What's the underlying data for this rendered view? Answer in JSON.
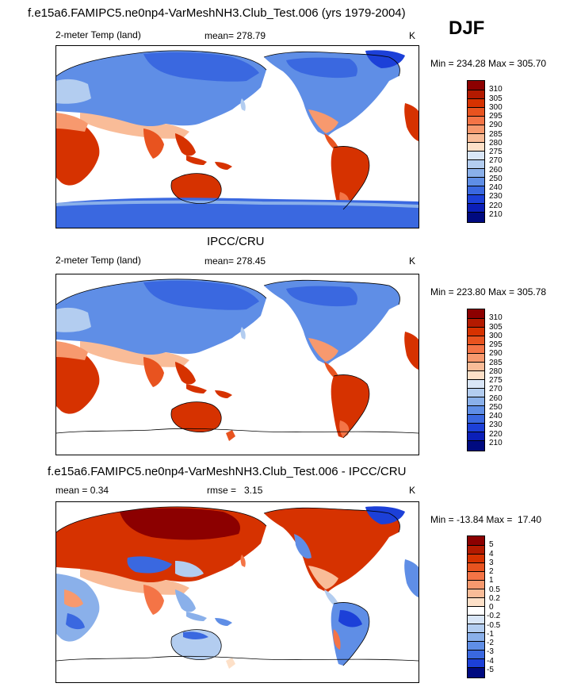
{
  "page": {
    "season": "DJF",
    "title": "f.e15a6.FAMIPC5.ne0np4-VarMeshNH3.Club_Test.006 (yrs 1979-2004)"
  },
  "panels": [
    {
      "id": "model",
      "variable": "2-meter Temp (land)",
      "stat": "mean= 278.79",
      "units": "K",
      "minmax": "Min = 234.28 Max = 305.70"
    },
    {
      "id": "obs",
      "heading": "IPCC/CRU",
      "variable": "2-meter Temp (land)",
      "stat": "mean= 278.45",
      "units": "K",
      "minmax": "Min = 223.80 Max = 305.78"
    },
    {
      "id": "diff",
      "heading": "f.e15a6.FAMIPC5.ne0np4-VarMeshNH3.Club_Test.006 - IPCC/CRU",
      "stat_mean": "mean =   0.34",
      "stat_rmse": "rmse =   3.15",
      "units": "K",
      "minmax": "Min = -13.84 Max =  17.40"
    }
  ],
  "chart_data": [
    {
      "type": "heatmap",
      "title": "f.e15a6.FAMIPC5.ne0np4-VarMeshNH3.Club_Test.006 (yrs 1979-2004)",
      "variable": "2-meter Temp (land)",
      "mean": 278.79,
      "min": 234.28,
      "max": 305.7,
      "units": "K",
      "levels": [
        "310",
        "305",
        "300",
        "295",
        "290",
        "285",
        "280",
        "275",
        "270",
        "260",
        "250",
        "240",
        "230",
        "220",
        "210"
      ],
      "colors": [
        "#8c0000",
        "#b31a00",
        "#d63200",
        "#e8531f",
        "#f47446",
        "#f7996e",
        "#f9bc98",
        "#fde0c8",
        "#d9e6f7",
        "#b3cdf0",
        "#8ab0ea",
        "#5f8ee6",
        "#3a68e0",
        "#1c40d8",
        "#0b1fb8",
        "#000a80"
      ]
    },
    {
      "type": "heatmap",
      "title": "IPCC/CRU",
      "variable": "2-meter Temp (land)",
      "mean": 278.45,
      "min": 223.8,
      "max": 305.78,
      "units": "K",
      "levels": [
        "310",
        "305",
        "300",
        "295",
        "290",
        "285",
        "280",
        "275",
        "270",
        "260",
        "250",
        "240",
        "230",
        "220",
        "210"
      ],
      "colors": [
        "#8c0000",
        "#b31a00",
        "#d63200",
        "#e8531f",
        "#f47446",
        "#f7996e",
        "#f9bc98",
        "#fde0c8",
        "#d9e6f7",
        "#b3cdf0",
        "#8ab0ea",
        "#5f8ee6",
        "#3a68e0",
        "#1c40d8",
        "#0b1fb8",
        "#000a80"
      ]
    },
    {
      "type": "heatmap",
      "title": "f.e15a6.FAMIPC5.ne0np4-VarMeshNH3.Club_Test.006 - IPCC/CRU",
      "mean": 0.34,
      "rmse": 3.15,
      "min": -13.84,
      "max": 17.4,
      "units": "K",
      "levels": [
        "5",
        "4",
        "3",
        "2",
        "1",
        "0.5",
        "0.2",
        "0",
        "-0.2",
        "-0.5",
        "-1",
        "-2",
        "-3",
        "-4",
        "-5"
      ],
      "colors": [
        "#8c0000",
        "#b31a00",
        "#d63200",
        "#e8531f",
        "#f47446",
        "#f7996e",
        "#f9bc98",
        "#fde0c8",
        "#ffffff",
        "#d9e6f7",
        "#b3cdf0",
        "#8ab0ea",
        "#5f8ee6",
        "#3a68e0",
        "#1c40d8",
        "#000a80"
      ]
    }
  ]
}
